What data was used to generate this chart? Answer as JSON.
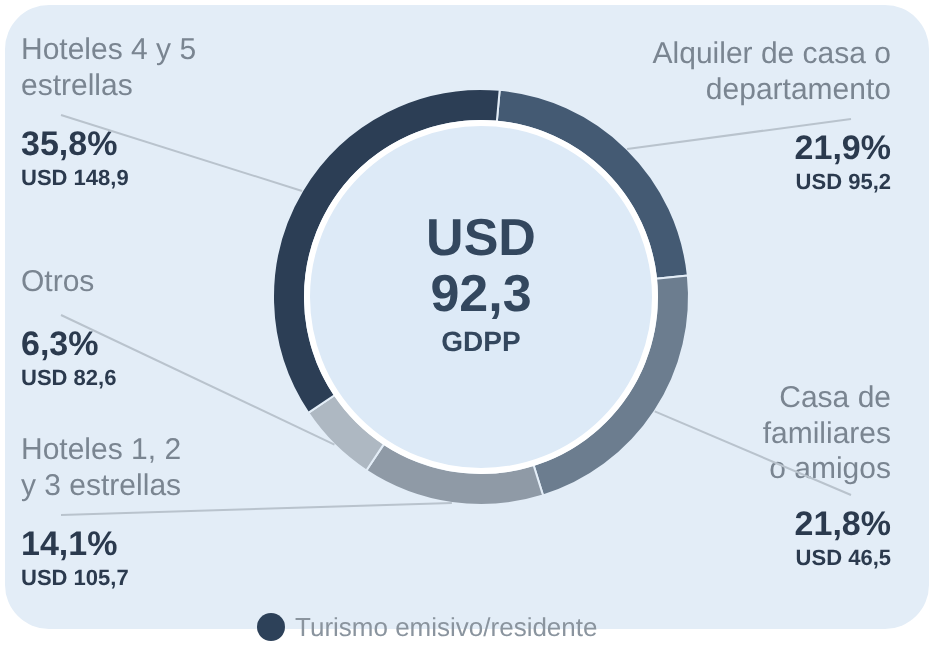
{
  "chart_data": {
    "type": "donut",
    "categories": [
      "Alquiler de casa o\ndepartamento",
      "Casa de\nfamiliares\no amigos",
      "Hoteles 1, 2\ny 3 estrellas",
      "Otros",
      "Hoteles 4 y 5\nestrellas"
    ],
    "series": [
      {
        "name": "Turismo emisivo/residente",
        "color": "#2d4159",
        "values": [
          21.9,
          21.8,
          14.1,
          6.3,
          35.8
        ]
      }
    ],
    "colors": [
      "#445a73",
      "#6c7d8f",
      "#8f9aa6",
      "#aeb8c2",
      "#2c3e55"
    ],
    "value_labels": [
      "21,9%",
      "21,8%",
      "14,1%",
      "6,3%",
      "35,8%"
    ],
    "annotations": [
      {
        "text": "USD 95,2",
        "x": "Alquiler de casa o\ndepartamento"
      },
      {
        "text": "USD 46,5",
        "x": "Casa de\nfamiliares\no amigos"
      },
      {
        "text": "USD 105,7",
        "x": "Hoteles 1, 2\ny 3 estrellas"
      },
      {
        "text": "USD 82,6",
        "x": "Otros"
      },
      {
        "text": "USD 148,9",
        "x": "Hoteles 4 y 5\nestrellas"
      },
      "USD",
      "92,3",
      "GDPP"
    ],
    "legend": "bottom"
  }
}
